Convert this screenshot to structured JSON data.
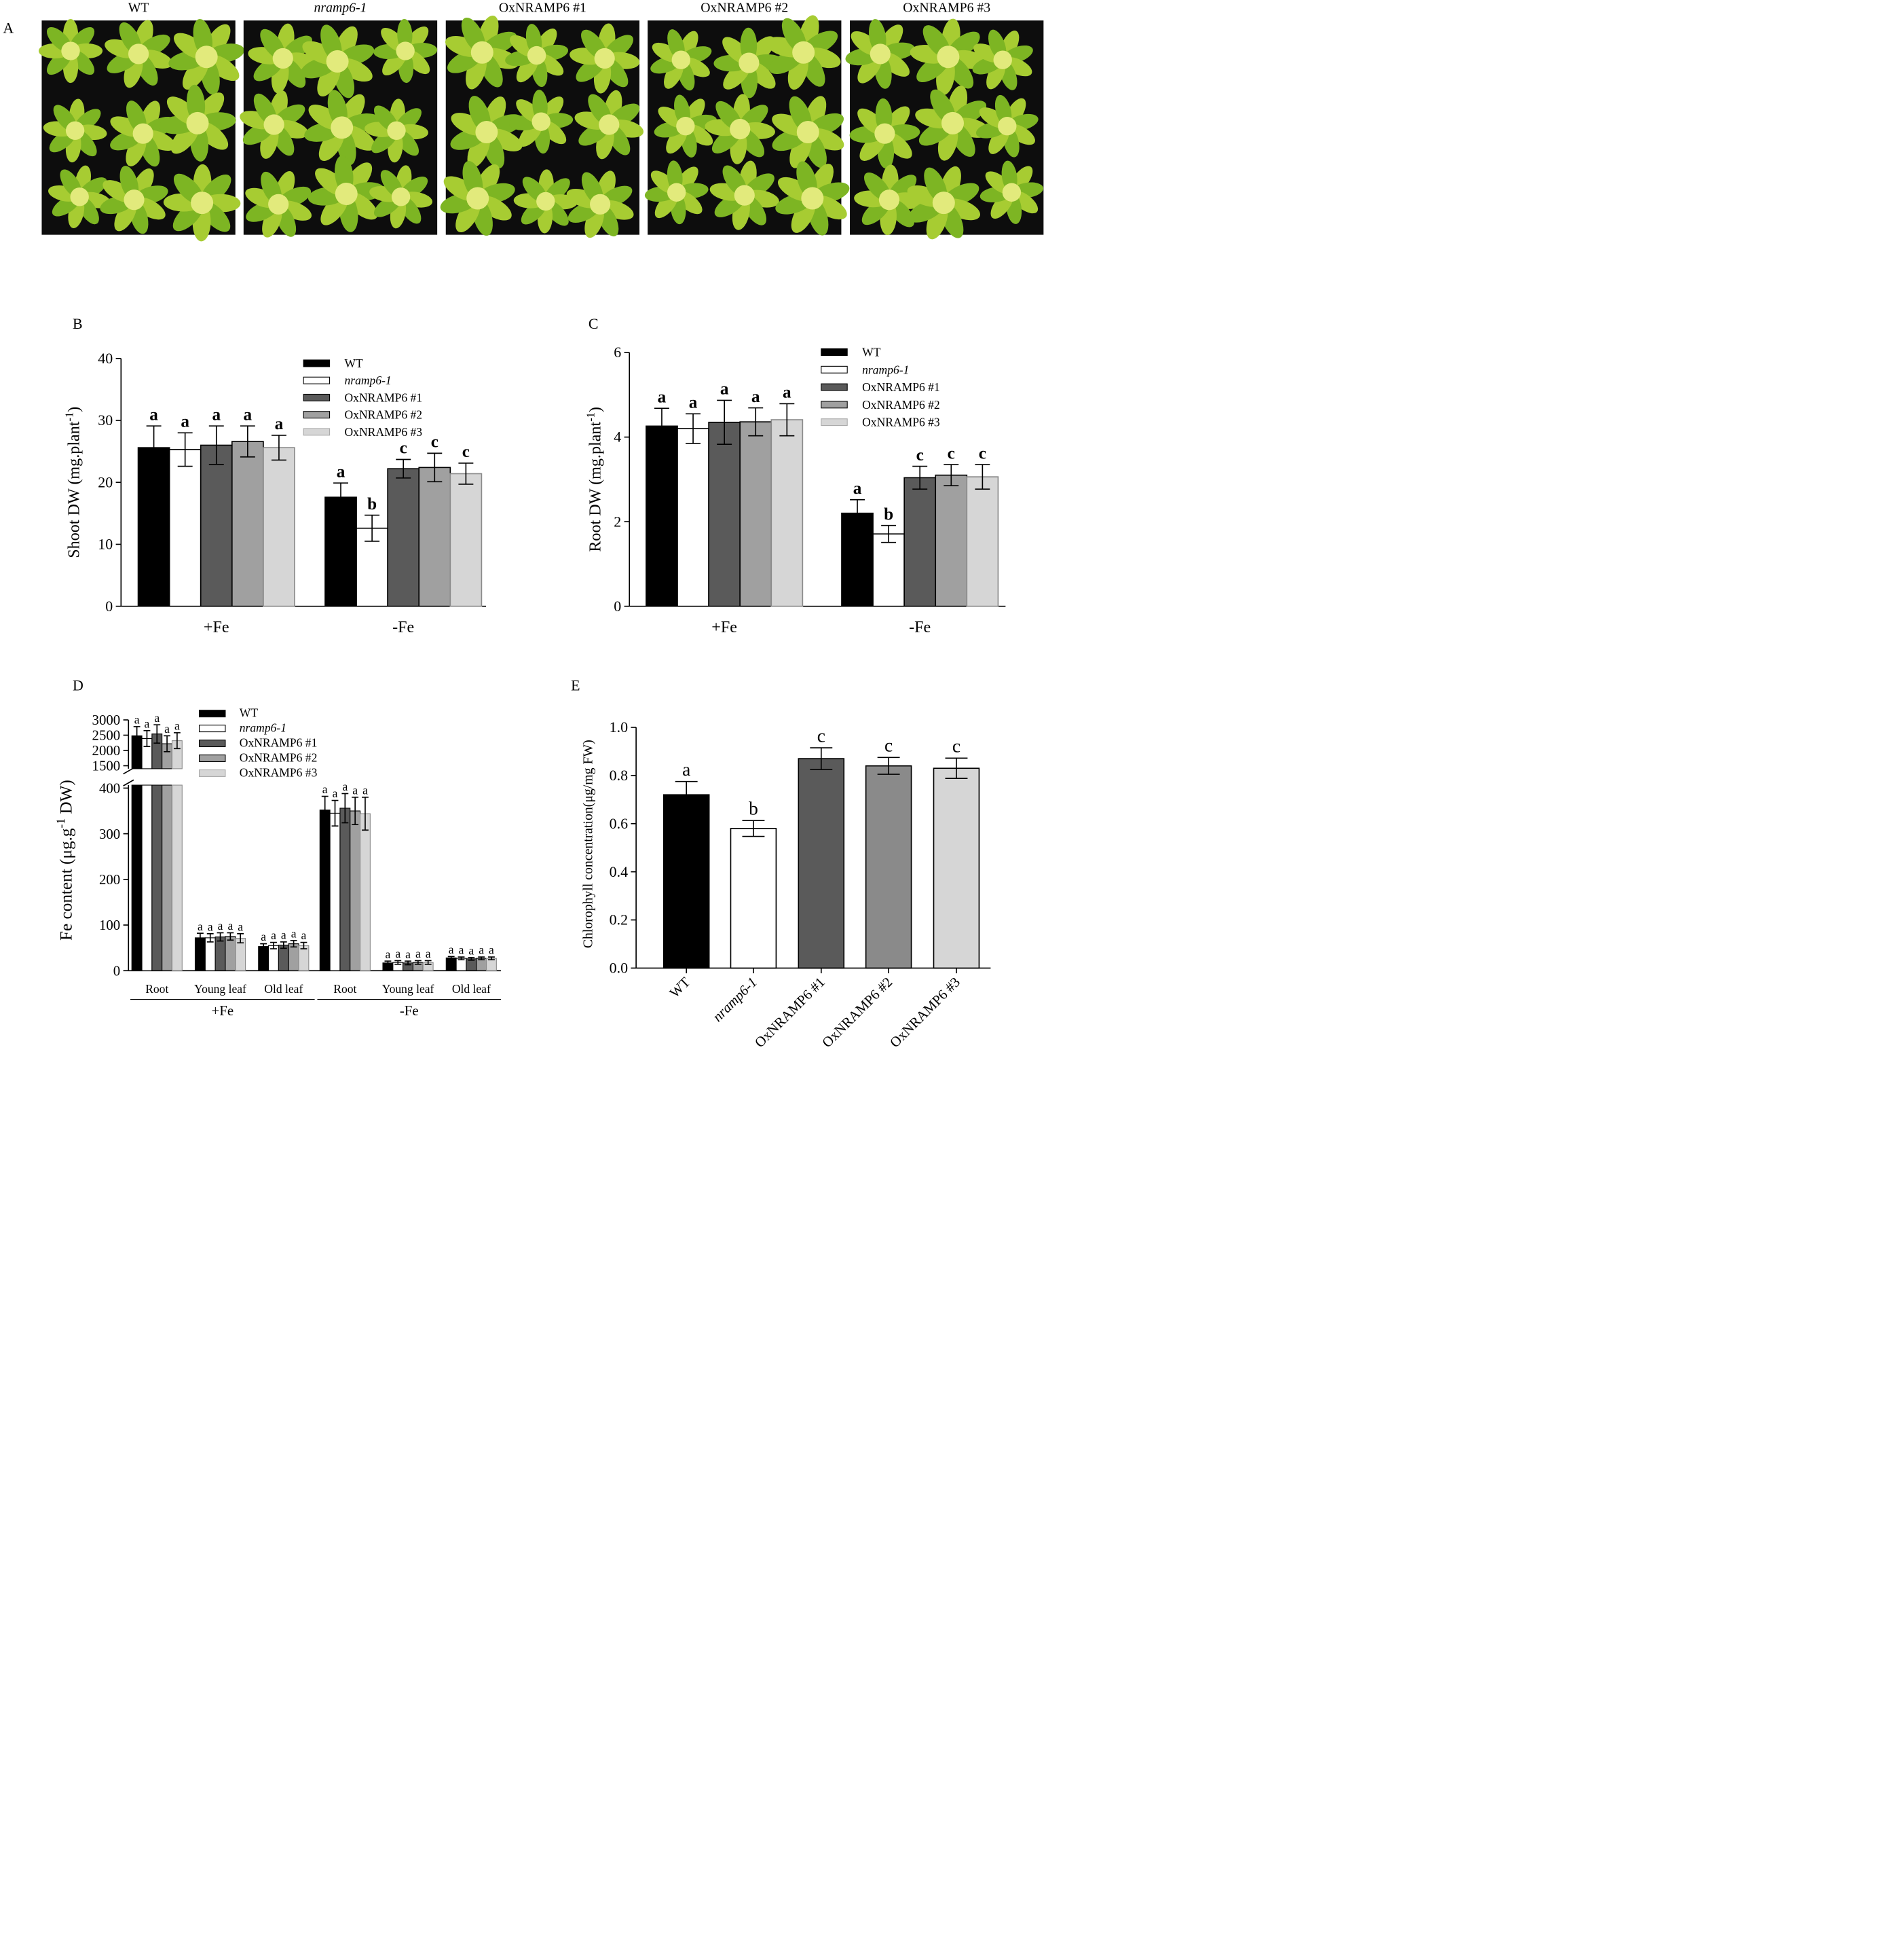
{
  "panel_a": {
    "letter": "A",
    "genotypes": [
      {
        "label": "WT",
        "italic": false
      },
      {
        "label": "nramp6-1",
        "italic": true
      },
      {
        "label": "OxNRAMP6 #1",
        "italic": false
      },
      {
        "label": "OxNRAMP6 #2",
        "italic": false
      },
      {
        "label": "OxNRAMP6 #3",
        "italic": false
      }
    ]
  },
  "legend": [
    {
      "label": "WT",
      "italic": false,
      "color": "#000000"
    },
    {
      "label": "nramp6-1",
      "italic": true,
      "color": "#ffffff"
    },
    {
      "label": "OxNRAMP6 #1",
      "italic": false,
      "color": "#5a5a5a"
    },
    {
      "label": "OxNRAMP6 #2",
      "italic": false,
      "color": "#a0a0a0"
    },
    {
      "label": "OxNRAMP6 #3",
      "italic": false,
      "color": "#d6d6d6"
    }
  ],
  "chart_data": [
    {
      "id": "B",
      "letter": "B",
      "type": "bar",
      "ylabel": "Shoot DW (mg.plant",
      "ylabel_sup": "-1",
      "ylabel_tail": ")",
      "ylim": [
        0,
        40
      ],
      "yticks": [
        "0",
        "10",
        "20",
        "30",
        "40"
      ],
      "categories": [
        "+Fe",
        "-Fe"
      ],
      "series": [
        {
          "name": "WT",
          "values": [
            25.6,
            17.6
          ],
          "errors": [
            3.5,
            2.3
          ],
          "letters": [
            "a",
            "a"
          ]
        },
        {
          "name": "nramp6-1",
          "values": [
            25.3,
            12.6
          ],
          "errors": [
            2.7,
            2.1
          ],
          "letters": [
            "a",
            "b"
          ]
        },
        {
          "name": "OxNRAMP6 #1",
          "values": [
            26.0,
            22.2
          ],
          "errors": [
            3.1,
            1.5
          ],
          "letters": [
            "a",
            "c"
          ]
        },
        {
          "name": "OxNRAMP6 #2",
          "values": [
            26.6,
            22.4
          ],
          "errors": [
            2.5,
            2.3
          ],
          "letters": [
            "a",
            "c"
          ]
        },
        {
          "name": "OxNRAMP6 #3",
          "values": [
            25.6,
            21.4
          ],
          "errors": [
            2.0,
            1.7
          ],
          "letters": [
            "a",
            "c"
          ]
        }
      ]
    },
    {
      "id": "C",
      "letter": "C",
      "type": "bar",
      "ylabel": "Root DW (mg.plant",
      "ylabel_sup": "-1",
      "ylabel_tail": ")",
      "ylim": [
        0,
        6
      ],
      "yticks": [
        "0",
        "2",
        "4",
        "6"
      ],
      "categories": [
        "+Fe",
        "-Fe"
      ],
      "series": [
        {
          "name": "WT",
          "values": [
            4.26,
            2.2
          ],
          "errors": [
            0.42,
            0.32
          ],
          "letters": [
            "a",
            "a"
          ]
        },
        {
          "name": "nramp6-1",
          "values": [
            4.2,
            1.71
          ],
          "errors": [
            0.35,
            0.2
          ],
          "letters": [
            "a",
            "b"
          ]
        },
        {
          "name": "OxNRAMP6 #1",
          "values": [
            4.35,
            3.04
          ],
          "errors": [
            0.52,
            0.27
          ],
          "letters": [
            "a",
            "c"
          ]
        },
        {
          "name": "OxNRAMP6 #2",
          "values": [
            4.36,
            3.1
          ],
          "errors": [
            0.33,
            0.25
          ],
          "letters": [
            "a",
            "c"
          ]
        },
        {
          "name": "OxNRAMP6 #3",
          "values": [
            4.41,
            3.06
          ],
          "errors": [
            0.38,
            0.29
          ],
          "letters": [
            "a",
            "c"
          ]
        }
      ]
    },
    {
      "id": "D",
      "letter": "D",
      "type": "bar",
      "ylabel": "Fe content (μg.g",
      "ylabel_sup": "-1",
      "ylabel_tail": " DW)",
      "broken_axis": {
        "lower_range": [
          0,
          400
        ],
        "upper_range": [
          1500,
          3000
        ]
      },
      "lower_yticks": [
        "0",
        "100",
        "200",
        "300",
        "400"
      ],
      "upper_yticks": [
        "1500",
        "2000",
        "2500",
        "3000"
      ],
      "categories": [
        "Root",
        "Young leaf",
        "Old leaf",
        "Root",
        "Young leaf",
        "Old leaf"
      ],
      "groups": [
        "+Fe",
        "-Fe"
      ],
      "series": [
        {
          "name": "WT",
          "values": [
            2480,
            72,
            53,
            352,
            17,
            28
          ],
          "errors": [
            300,
            10,
            6,
            30,
            4,
            3
          ],
          "letters": [
            "a",
            "a",
            "a",
            "a",
            "a",
            "a"
          ]
        },
        {
          "name": "nramp6-1",
          "values": [
            2390,
            72,
            55,
            345,
            18,
            27
          ],
          "errors": [
            260,
            9,
            7,
            28,
            4,
            3
          ],
          "letters": [
            "a",
            "a",
            "a",
            "a",
            "a",
            "a"
          ]
        },
        {
          "name": "OxNRAMP6 #1",
          "values": [
            2540,
            74,
            56,
            356,
            17,
            26
          ],
          "errors": [
            300,
            9,
            7,
            32,
            4,
            3
          ],
          "letters": [
            "a",
            "a",
            "a",
            "a",
            "a",
            "a"
          ]
        },
        {
          "name": "OxNRAMP6 #2",
          "values": [
            2220,
            75,
            59,
            350,
            18,
            27
          ],
          "errors": [
            260,
            8,
            7,
            30,
            4,
            3
          ],
          "letters": [
            "a",
            "a",
            "a",
            "a",
            "a",
            "a"
          ]
        },
        {
          "name": "OxNRAMP6 #3",
          "values": [
            2320,
            71,
            55,
            344,
            18,
            27
          ],
          "errors": [
            260,
            10,
            7,
            36,
            4,
            3
          ],
          "letters": [
            "a",
            "a",
            "a",
            "a",
            "a",
            "a"
          ]
        }
      ]
    },
    {
      "id": "E",
      "letter": "E",
      "type": "bar",
      "ylabel": "Chlorophyll concentration(μg/mg FW)",
      "ylim": [
        0,
        1.0
      ],
      "yticks": [
        "0.0",
        "0.2",
        "0.4",
        "0.6",
        "0.8",
        "1.0"
      ],
      "categories": [
        "WT",
        "nramp6-1",
        "OxNRAMP6 #1",
        "OxNRAMP6 #2",
        "OxNRAMP6 #3"
      ],
      "italic_categories": [
        false,
        true,
        false,
        false,
        false
      ],
      "colors": [
        "#000000",
        "#ffffff",
        "#5a5a5a",
        "#8a8a8a",
        "#d6d6d6"
      ],
      "values": [
        0.72,
        0.58,
        0.87,
        0.84,
        0.83
      ],
      "errors": [
        0.055,
        0.033,
        0.045,
        0.035,
        0.042
      ],
      "letters": [
        "a",
        "b",
        "c",
        "c",
        "c"
      ]
    }
  ]
}
